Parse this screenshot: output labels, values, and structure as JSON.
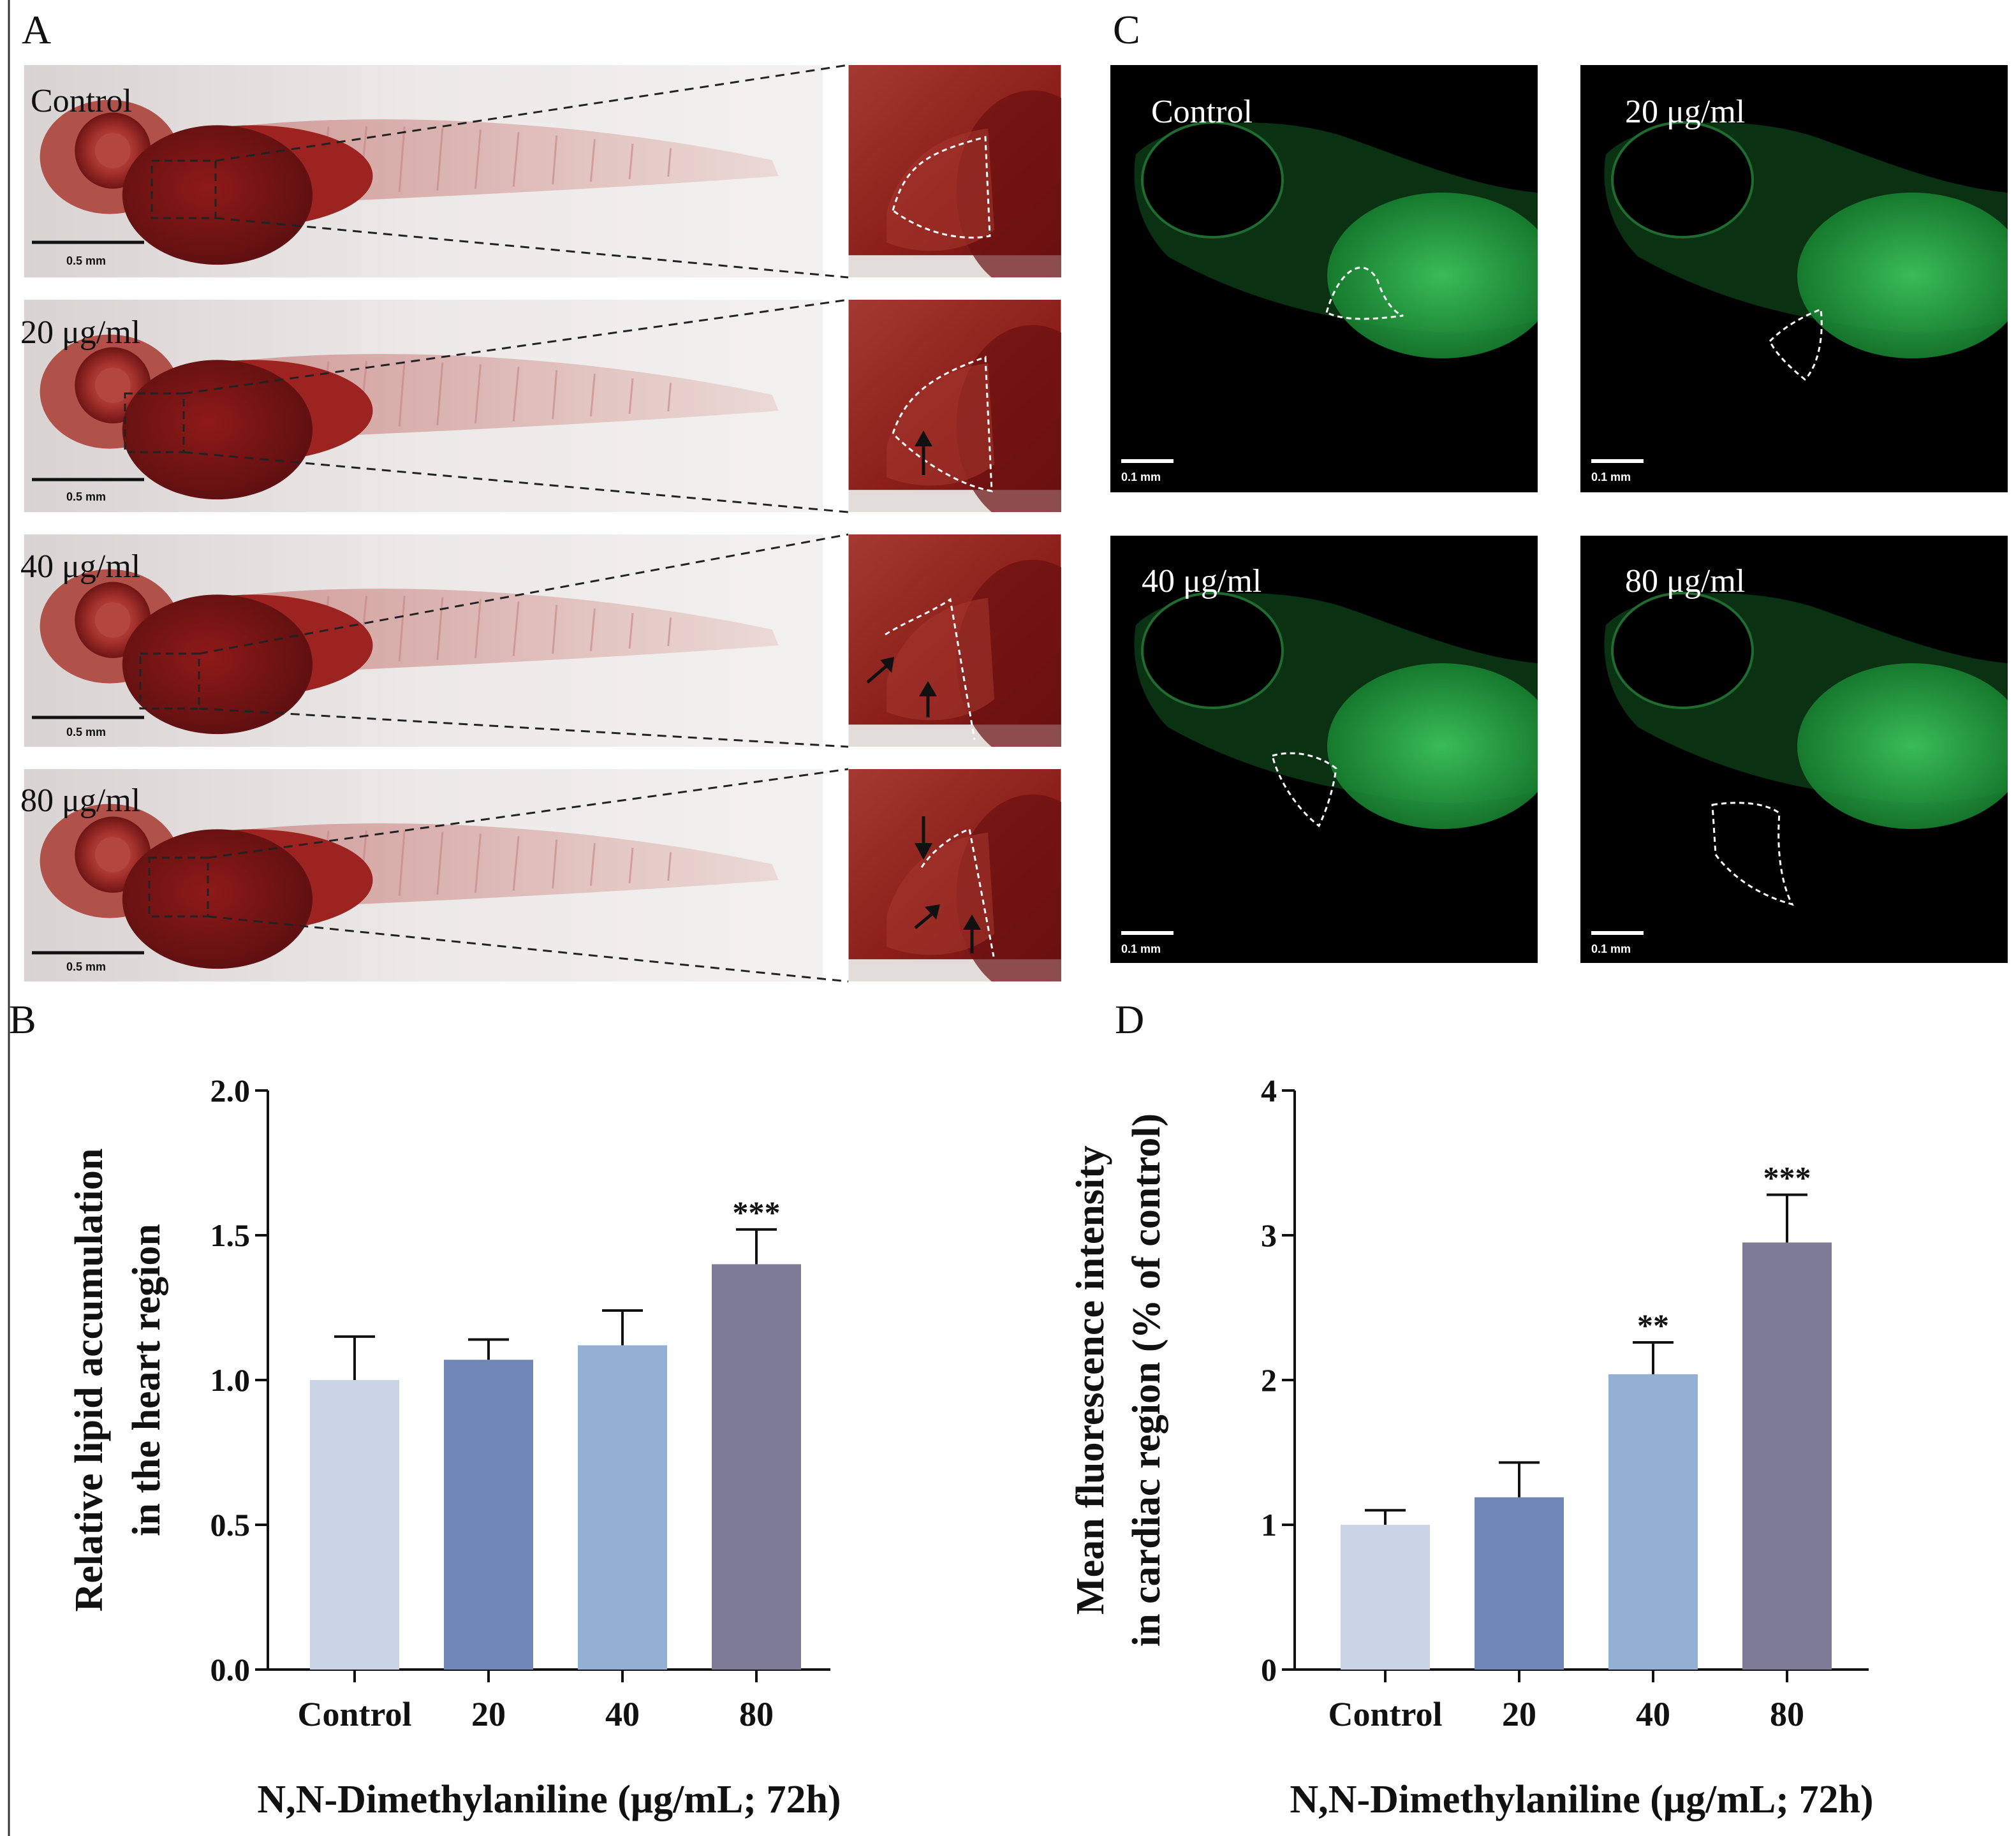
{
  "panels": {
    "a_letter": "A",
    "b_letter": "B",
    "c_letter": "C",
    "d_letter": "D"
  },
  "panel_a": {
    "labels": [
      "Control",
      "20 μg/ml",
      "40 μg/ml",
      "80 μg/ml"
    ],
    "scale_bar": "0.5 mm"
  },
  "panel_c": {
    "labels": [
      "Control",
      "20 μg/ml",
      "40 μg/ml",
      "80 μg/ml"
    ],
    "scale_bar": "0.1 mm"
  },
  "colors": {
    "bars": [
      "#cbd3e6",
      "#6f86b6",
      "#92b0d4",
      "#7d7b95"
    ],
    "fish_body": "#9b1c1a",
    "fish_background": "#e7e3e2",
    "fluorescence": "#2bb04d"
  },
  "chart_data": [
    {
      "type": "bar",
      "panel": "B",
      "categories": [
        "Control",
        "20",
        "40",
        "80"
      ],
      "values": [
        1.0,
        1.07,
        1.12,
        1.4
      ],
      "errors": [
        0.15,
        0.07,
        0.12,
        0.12
      ],
      "significance": [
        "",
        "",
        "",
        "***"
      ],
      "ylim": [
        0,
        2.0
      ],
      "yticks": [
        "0.0",
        "0.5",
        "1.0",
        "1.5",
        "2.0"
      ],
      "ytick_values": [
        0,
        0.5,
        1.0,
        1.5,
        2.0
      ],
      "ylabel_line1": "Relative lipid accumulation",
      "ylabel_line2": "in the heart region",
      "xlabel": "N,N-Dimethylaniline (μg/mL; 72h)"
    },
    {
      "type": "bar",
      "panel": "D",
      "categories": [
        "Control",
        "20",
        "40",
        "80"
      ],
      "values": [
        1.0,
        1.19,
        2.04,
        2.95
      ],
      "errors": [
        0.1,
        0.24,
        0.22,
        0.33
      ],
      "significance": [
        "",
        "",
        "**",
        "***"
      ],
      "ylim": [
        0,
        4
      ],
      "yticks": [
        "0",
        "1",
        "2",
        "3",
        "4"
      ],
      "ytick_values": [
        0,
        1,
        2,
        3,
        4
      ],
      "ylabel_line1": "Mean fluorescence intensity",
      "ylabel_line2": "in cardiac region (% of control)",
      "xlabel": "N,N-Dimethylaniline (μg/mL; 72h)"
    }
  ]
}
